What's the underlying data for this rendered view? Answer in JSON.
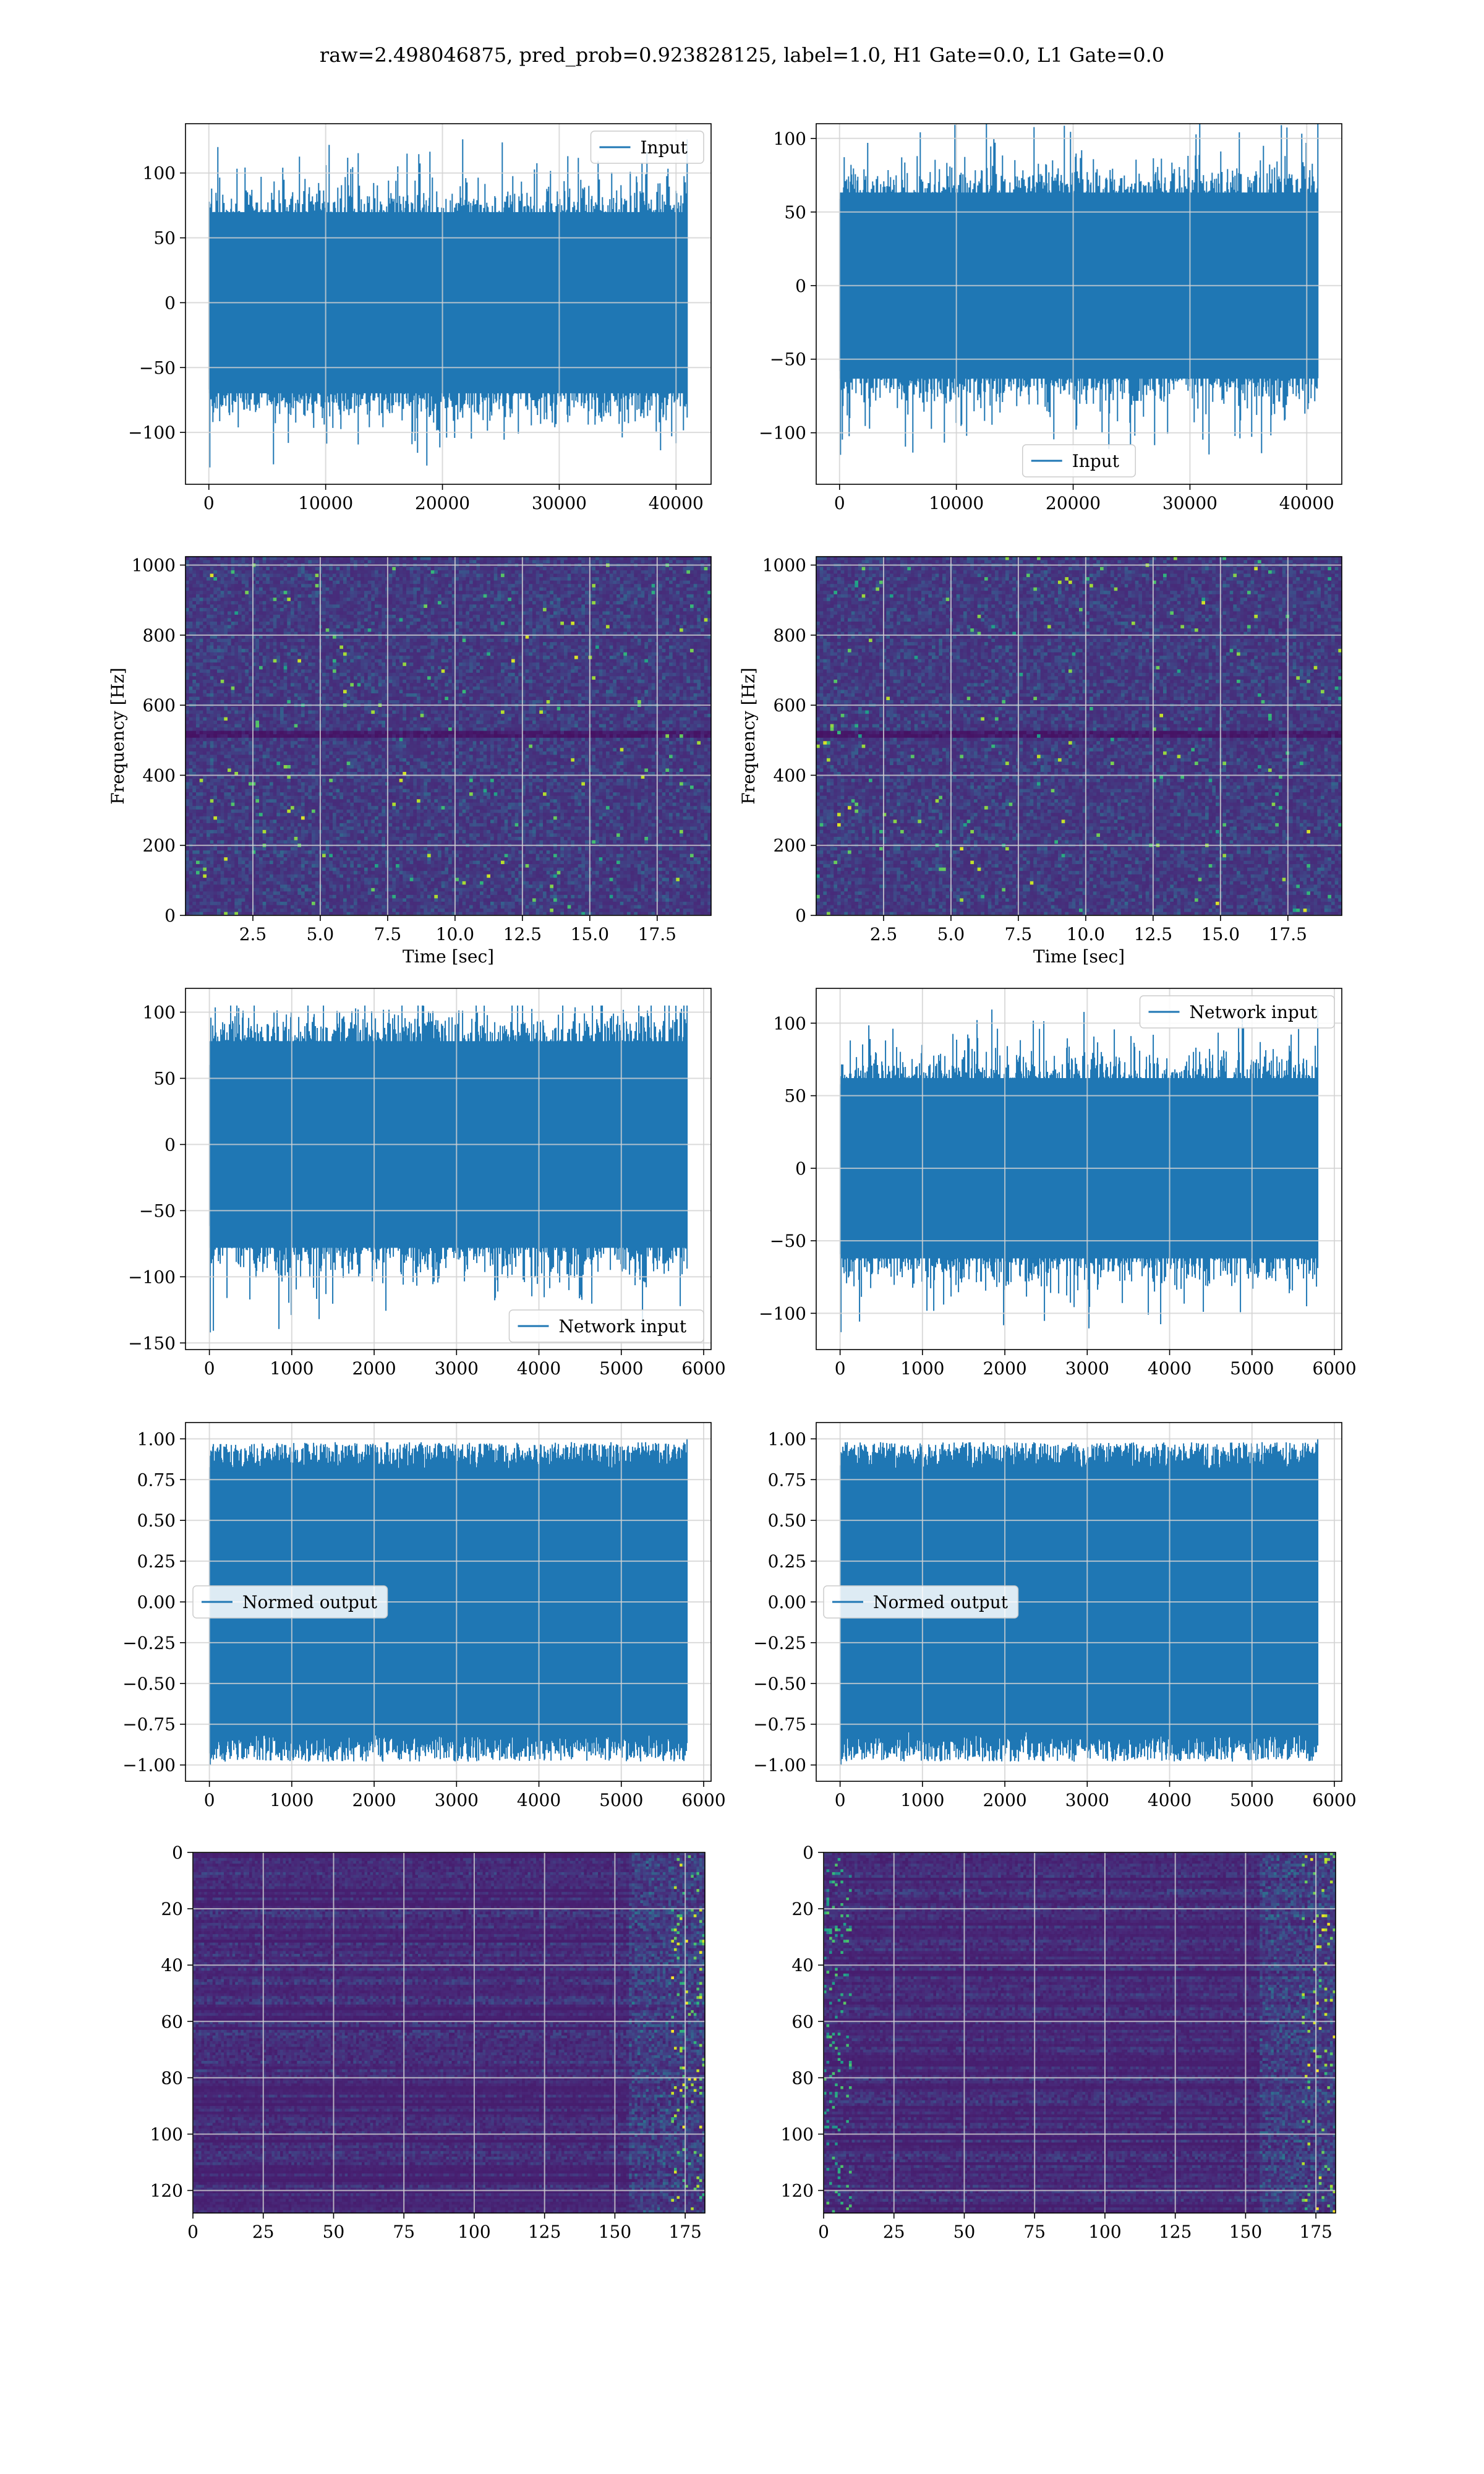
{
  "title": "raw=2.498046875, pred_prob=0.923828125, label=1.0, H1 Gate=0.0, L1 Gate=0.0",
  "colors": {
    "series": "#1f77b4",
    "grid": "#d3d3d3",
    "axes": "#000000",
    "legend_bg": "#ffffff",
    "legend_edge": "#cccccc"
  },
  "chart_data": [
    {
      "type": "line",
      "panel": "row1-left",
      "series": [
        {
          "name": "Input",
          "amplitude_range": [
            -127,
            126
          ]
        }
      ],
      "xlim": [
        -2000,
        43000
      ],
      "ylim": [
        -140,
        138
      ],
      "n_points": 40960,
      "xticks": [
        0,
        10000,
        20000,
        30000,
        40000
      ],
      "yticks": [
        -100,
        -50,
        0,
        50,
        100
      ],
      "legend": "upper right",
      "xlabel": "",
      "ylabel": "",
      "grid": true
    },
    {
      "type": "line",
      "panel": "row1-right",
      "series": [
        {
          "name": "Input",
          "amplitude_range": [
            -115,
            113
          ]
        }
      ],
      "xlim": [
        -2000,
        43000
      ],
      "ylim": [
        -135,
        110
      ],
      "n_points": 40960,
      "xticks": [
        0,
        10000,
        20000,
        30000,
        40000
      ],
      "yticks": [
        -100,
        -50,
        0,
        50,
        100
      ],
      "legend": "lower center",
      "xlabel": "",
      "ylabel": "",
      "grid": true
    },
    {
      "type": "heatmap",
      "panel": "row2-left",
      "colormap": "viridis",
      "xlim": [
        0,
        19.5
      ],
      "ylim": [
        0,
        1024
      ],
      "xticks": [
        2.5,
        5.0,
        7.5,
        10.0,
        12.5,
        15.0,
        17.5
      ],
      "yticks": [
        0,
        200,
        400,
        600,
        800,
        1000
      ],
      "xlabel": "Time [sec]",
      "ylabel": "Frequency [Hz]",
      "grid": true
    },
    {
      "type": "heatmap",
      "panel": "row2-right",
      "colormap": "viridis",
      "xlim": [
        0,
        19.5
      ],
      "ylim": [
        0,
        1024
      ],
      "xticks": [
        2.5,
        5.0,
        7.5,
        10.0,
        12.5,
        15.0,
        17.5
      ],
      "yticks": [
        0,
        200,
        400,
        600,
        800,
        1000
      ],
      "xlabel": "Time [sec]",
      "ylabel": "Frequency [Hz]",
      "grid": true
    },
    {
      "type": "line",
      "panel": "row3-left",
      "series": [
        {
          "name": "Network input",
          "amplitude_range": [
            -142,
            105
          ]
        }
      ],
      "xlim": [
        -290,
        6090
      ],
      "ylim": [
        -155,
        118
      ],
      "n_points": 5800,
      "xticks": [
        0,
        1000,
        2000,
        3000,
        4000,
        5000,
        6000
      ],
      "yticks": [
        -150,
        -100,
        -50,
        0,
        50,
        100
      ],
      "legend": "lower right",
      "xlabel": "",
      "ylabel": "",
      "grid": true
    },
    {
      "type": "line",
      "panel": "row3-right",
      "series": [
        {
          "name": "Network input",
          "amplitude_range": [
            -113,
            110
          ]
        }
      ],
      "xlim": [
        -290,
        6090
      ],
      "ylim": [
        -125,
        124
      ],
      "n_points": 5800,
      "xticks": [
        0,
        1000,
        2000,
        3000,
        4000,
        5000,
        6000
      ],
      "yticks": [
        -100,
        -50,
        0,
        50,
        100
      ],
      "legend": "upper right",
      "xlabel": "",
      "ylabel": "",
      "grid": true
    },
    {
      "type": "line",
      "panel": "row4-left",
      "series": [
        {
          "name": "Normed output",
          "amplitude_range": [
            -1.0,
            1.0
          ]
        }
      ],
      "xlim": [
        -290,
        6090
      ],
      "ylim": [
        -1.1,
        1.1
      ],
      "n_points": 5800,
      "xticks": [
        0,
        1000,
        2000,
        3000,
        4000,
        5000,
        6000
      ],
      "yticks": [
        -1.0,
        -0.75,
        -0.5,
        -0.25,
        0.0,
        0.25,
        0.5,
        0.75,
        1.0
      ],
      "legend": "center left",
      "xlabel": "",
      "ylabel": "",
      "grid": true
    },
    {
      "type": "line",
      "panel": "row4-right",
      "series": [
        {
          "name": "Normed output",
          "amplitude_range": [
            -1.0,
            1.0
          ]
        }
      ],
      "xlim": [
        -290,
        6090
      ],
      "ylim": [
        -1.1,
        1.1
      ],
      "n_points": 5800,
      "xticks": [
        0,
        1000,
        2000,
        3000,
        4000,
        5000,
        6000
      ],
      "yticks": [
        -1.0,
        -0.75,
        -0.5,
        -0.25,
        0.0,
        0.25,
        0.5,
        0.75,
        1.0
      ],
      "legend": "center left",
      "xlabel": "",
      "ylabel": "",
      "grid": true
    },
    {
      "type": "heatmap",
      "panel": "row5-left",
      "colormap": "viridis",
      "origin": "upper",
      "xlim": [
        0,
        182
      ],
      "ylim": [
        128,
        0
      ],
      "xticks": [
        0,
        25,
        50,
        75,
        100,
        125,
        150,
        175
      ],
      "yticks": [
        0,
        20,
        40,
        60,
        80,
        100,
        120
      ],
      "xlabel": "",
      "ylabel": "",
      "grid": true
    },
    {
      "type": "heatmap",
      "panel": "row5-right",
      "colormap": "viridis",
      "origin": "upper",
      "xlim": [
        0,
        182
      ],
      "ylim": [
        128,
        0
      ],
      "xticks": [
        0,
        25,
        50,
        75,
        100,
        125,
        150,
        175
      ],
      "yticks": [
        0,
        20,
        40,
        60,
        80,
        100,
        120
      ],
      "xlabel": "",
      "ylabel": "",
      "grid": true
    }
  ]
}
